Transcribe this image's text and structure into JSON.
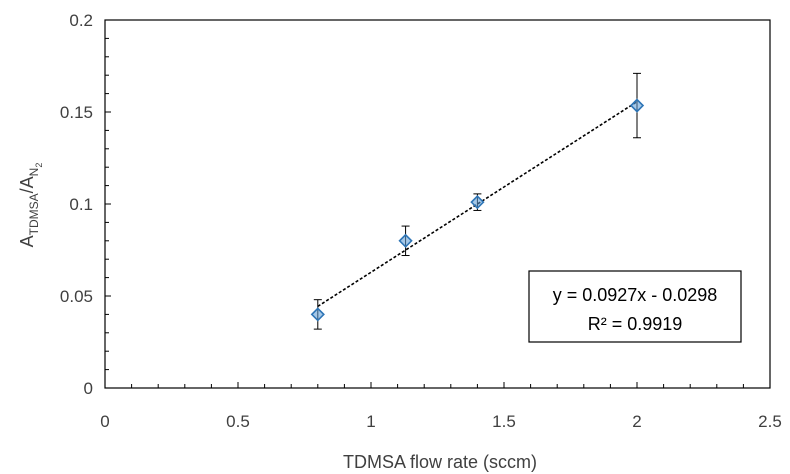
{
  "chart_data": {
    "type": "scatter",
    "xlabel": "TDMSA flow rate (sccm)",
    "ylabel": {
      "main_a": "A",
      "sub_a": "TDMSA",
      "slash": "/",
      "main_b": "A",
      "sub_b": "N",
      "subsub_b": "2"
    },
    "xlim": [
      0,
      2.5
    ],
    "ylim": [
      0,
      0.2
    ],
    "xticks": [
      "0",
      "0.5",
      "1",
      "1.5",
      "2",
      "2.5"
    ],
    "yticks": [
      "0",
      "0.05",
      "0.1",
      "0.15",
      "0.2"
    ],
    "xtick_values": [
      0,
      0.5,
      1,
      1.5,
      2,
      2.5
    ],
    "ytick_values": [
      0,
      0.05,
      0.1,
      0.15,
      0.2
    ],
    "grid": false,
    "points": [
      {
        "x": 0.8,
        "y": 0.04,
        "err": 0.008
      },
      {
        "x": 1.13,
        "y": 0.08,
        "err": 0.008
      },
      {
        "x": 1.4,
        "y": 0.101,
        "err": 0.0045
      },
      {
        "x": 2.0,
        "y": 0.1535,
        "err": 0.0175
      }
    ],
    "trendline": {
      "slope": 0.0927,
      "intercept": -0.0298,
      "x_range": [
        0.8,
        2.0
      ]
    },
    "equation": "y = 0.0927x - 0.0298",
    "r_squared": "R² = 0.9919",
    "colors": {
      "marker_fill": "#5b9bd5",
      "marker_stroke": "#2e75b6",
      "trendline": "#000000",
      "axis": "#000000"
    }
  }
}
